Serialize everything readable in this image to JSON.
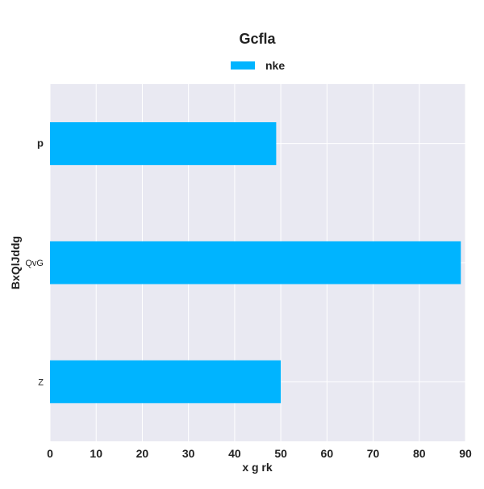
{
  "chart_data": {
    "type": "bar",
    "orientation": "horizontal",
    "title": "Gcfla",
    "xlabel": "x g rk",
    "ylabel": "BxQlJddg",
    "categories": [
      "p",
      "QvG",
      "Z"
    ],
    "series": [
      {
        "name": "nke",
        "values": [
          49,
          89,
          50
        ],
        "color": "#00b4ff"
      }
    ],
    "xlim": [
      0,
      90
    ],
    "x_ticks": [
      0,
      10,
      20,
      30,
      40,
      50,
      60,
      70,
      80,
      90
    ],
    "grid": true,
    "legend_position": "top-center",
    "background_color": "#e9e9f2",
    "grid_color": "#ffffff"
  }
}
